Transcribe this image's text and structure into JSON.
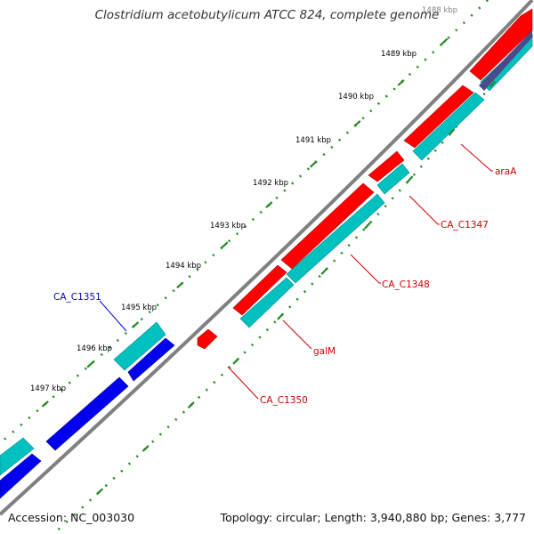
{
  "title": "Clostridium acetobutylicum ATCC 824, complete genome",
  "footer": {
    "accession": "Accession: NC_003030",
    "summary": "Topology: circular; Length: 3,940,880 bp; Genes: 3,777"
  },
  "colors": {
    "backbone": "#808080",
    "tick_dot": "#228b22",
    "tick_major": "#228b22",
    "forward_gene": "#ff0000",
    "forward_cds": "#00c0c0",
    "reverse_gene": "#0000ee",
    "reverse_cds": "#00c0c0",
    "label_forward": "#cc0000",
    "label_reverse": "#0000cc",
    "slate": "#4b4b8c"
  },
  "scale": {
    "unit": "kbp",
    "ticks": [
      "1488 kbp",
      "1489 kbp",
      "1490 kbp",
      "1491 kbp",
      "1492 kbp",
      "1493 kbp",
      "1494 kbp",
      "1495 kbp",
      "1496 kbp",
      "1497 kbp"
    ]
  },
  "features": [
    {
      "name": "araA",
      "strand": "forward"
    },
    {
      "name": "CA_C1347",
      "strand": "forward"
    },
    {
      "name": "CA_C1348",
      "strand": "forward"
    },
    {
      "name": "galM",
      "strand": "forward"
    },
    {
      "name": "CA_C1350",
      "strand": "forward"
    },
    {
      "name": "CA_C1351",
      "strand": "reverse"
    }
  ]
}
